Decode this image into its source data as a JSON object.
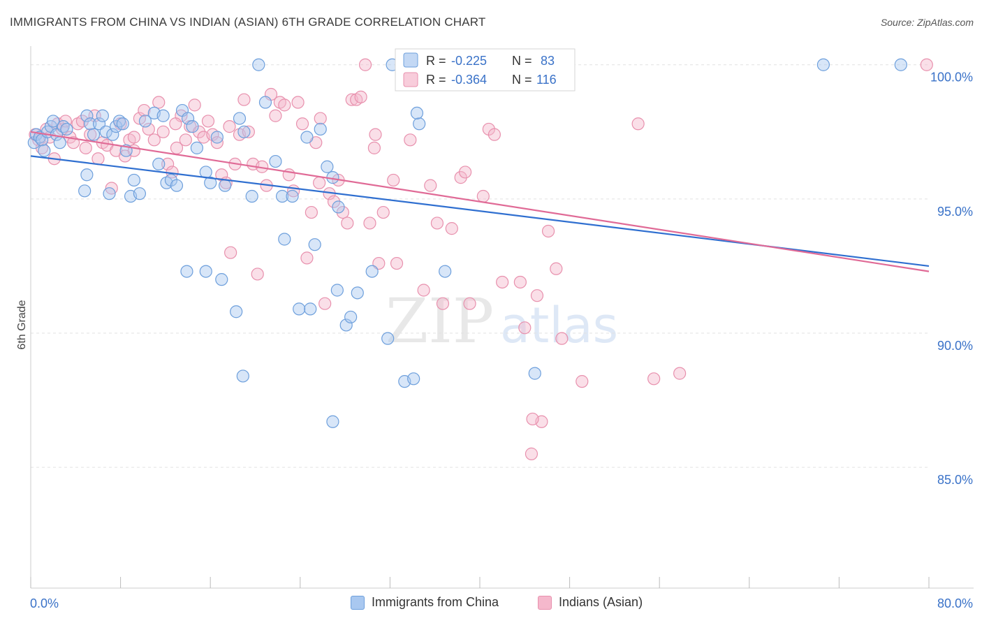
{
  "header": {
    "title": "IMMIGRANTS FROM CHINA VS INDIAN (ASIAN) 6TH GRADE CORRELATION CHART",
    "source": "Source: ZipAtlas.com"
  },
  "watermark": {
    "zip": "ZIP",
    "atlas": "atlas"
  },
  "colors": {
    "china_fill": "#a9c8f0",
    "china_stroke": "#6d9fdc",
    "china_line": "#2f6fd0",
    "indian_fill": "#f5b8cc",
    "indian_stroke": "#e890ad",
    "indian_line": "#e06a96",
    "value_text": "#3a72c8",
    "grid": "#e2e2e2"
  },
  "legend_top": {
    "rows": [
      {
        "r_label": "R =",
        "r_value": "-0.225",
        "n_label": "N =",
        "n_value": "83"
      },
      {
        "r_label": "R =",
        "r_value": "-0.364",
        "n_label": "N =",
        "n_value": "116"
      }
    ]
  },
  "legend_bottom": [
    {
      "label": "Immigrants from China"
    },
    {
      "label": "Indians (Asian)"
    }
  ],
  "chart_data": {
    "type": "scatter",
    "title": "IMMIGRANTS FROM CHINA VS INDIAN (ASIAN) 6TH GRADE CORRELATION CHART",
    "xlabel": "",
    "ylabel": "6th Grade",
    "xlim": [
      0,
      80
    ],
    "ylim": [
      80.5,
      100.8
    ],
    "x_tick_labels": [
      "0.0%",
      "80.0%"
    ],
    "y_ticks": [
      85,
      90,
      95,
      100
    ],
    "y_tick_labels": [
      "85.0%",
      "90.0%",
      "95.0%",
      "100.0%"
    ],
    "grid": true,
    "legend": "top-center",
    "series": [
      {
        "name": "Immigrants from China",
        "r": -0.225,
        "n": 83,
        "trend": [
          [
            0,
            96.6
          ],
          [
            80,
            92.5
          ]
        ],
        "points": [
          [
            0.3,
            97.1
          ],
          [
            0.5,
            97.4
          ],
          [
            0.8,
            97.3
          ],
          [
            1.0,
            97.2
          ],
          [
            1.2,
            96.8
          ],
          [
            1.5,
            97.5
          ],
          [
            1.8,
            97.7
          ],
          [
            2.0,
            97.9
          ],
          [
            2.3,
            97.4
          ],
          [
            2.6,
            97.1
          ],
          [
            2.9,
            97.7
          ],
          [
            3.2,
            97.6
          ],
          [
            4.8,
            95.3
          ],
          [
            5.0,
            98.1
          ],
          [
            5.3,
            97.8
          ],
          [
            5.6,
            97.4
          ],
          [
            5.0,
            95.9
          ],
          [
            6.1,
            97.8
          ],
          [
            6.4,
            98.1
          ],
          [
            6.7,
            97.5
          ],
          [
            7.0,
            95.2
          ],
          [
            7.3,
            97.4
          ],
          [
            7.6,
            97.7
          ],
          [
            7.9,
            97.9
          ],
          [
            8.2,
            97.8
          ],
          [
            8.5,
            96.8
          ],
          [
            8.9,
            95.1
          ],
          [
            9.2,
            95.7
          ],
          [
            9.7,
            95.2
          ],
          [
            10.2,
            97.9
          ],
          [
            11.0,
            98.2
          ],
          [
            11.4,
            96.3
          ],
          [
            11.8,
            98.1
          ],
          [
            12.1,
            95.6
          ],
          [
            12.5,
            95.7
          ],
          [
            13.0,
            95.5
          ],
          [
            13.5,
            98.3
          ],
          [
            14.0,
            98.0
          ],
          [
            14.4,
            97.7
          ],
          [
            14.8,
            96.9
          ],
          [
            15.6,
            96.0
          ],
          [
            16.0,
            95.6
          ],
          [
            16.6,
            97.3
          ],
          [
            17.3,
            95.5
          ],
          [
            18.6,
            98.0
          ],
          [
            19.0,
            97.5
          ],
          [
            19.7,
            95.1
          ],
          [
            20.3,
            100.0
          ],
          [
            20.9,
            98.6
          ],
          [
            21.8,
            96.4
          ],
          [
            22.4,
            95.1
          ],
          [
            23.3,
            95.1
          ],
          [
            24.6,
            97.3
          ],
          [
            25.8,
            97.6
          ],
          [
            26.4,
            96.2
          ],
          [
            26.9,
            95.8
          ],
          [
            27.4,
            94.7
          ],
          [
            13.9,
            92.3
          ],
          [
            15.6,
            92.3
          ],
          [
            17.0,
            92.0
          ],
          [
            18.3,
            90.8
          ],
          [
            18.9,
            88.4
          ],
          [
            22.6,
            93.5
          ],
          [
            23.9,
            90.9
          ],
          [
            24.9,
            90.9
          ],
          [
            25.3,
            93.3
          ],
          [
            27.3,
            91.6
          ],
          [
            28.1,
            90.3
          ],
          [
            28.5,
            90.6
          ],
          [
            29.1,
            91.5
          ],
          [
            30.4,
            92.3
          ],
          [
            31.8,
            89.8
          ],
          [
            32.2,
            100.0
          ],
          [
            33.3,
            88.2
          ],
          [
            34.1,
            88.3
          ],
          [
            34.6,
            97.8
          ],
          [
            36.9,
            92.3
          ],
          [
            39.6,
            100.0
          ],
          [
            44.9,
            88.5
          ],
          [
            70.6,
            100.0
          ],
          [
            77.5,
            100.0
          ],
          [
            26.9,
            86.7
          ],
          [
            34.4,
            98.2
          ]
        ]
      },
      {
        "name": "Indians (Asian)",
        "r": -0.364,
        "n": 116,
        "trend": [
          [
            0,
            97.5
          ],
          [
            80,
            92.3
          ]
        ],
        "points": [
          [
            0.4,
            97.4
          ],
          [
            0.7,
            97.2
          ],
          [
            1.0,
            96.9
          ],
          [
            1.4,
            97.6
          ],
          [
            1.7,
            97.3
          ],
          [
            2.1,
            96.5
          ],
          [
            2.4,
            97.8
          ],
          [
            2.8,
            97.6
          ],
          [
            3.1,
            97.9
          ],
          [
            3.5,
            97.3
          ],
          [
            3.8,
            97.1
          ],
          [
            4.2,
            97.8
          ],
          [
            4.6,
            97.9
          ],
          [
            4.9,
            96.9
          ],
          [
            5.3,
            97.4
          ],
          [
            5.7,
            98.1
          ],
          [
            6.0,
            96.5
          ],
          [
            6.4,
            97.1
          ],
          [
            6.8,
            97.0
          ],
          [
            7.2,
            95.4
          ],
          [
            7.6,
            96.8
          ],
          [
            8.0,
            97.8
          ],
          [
            8.4,
            96.6
          ],
          [
            8.8,
            97.2
          ],
          [
            9.2,
            97.3
          ],
          [
            9.7,
            98.0
          ],
          [
            10.1,
            98.3
          ],
          [
            10.5,
            97.6
          ],
          [
            11.0,
            97.2
          ],
          [
            11.4,
            98.6
          ],
          [
            11.8,
            97.5
          ],
          [
            12.2,
            96.3
          ],
          [
            12.6,
            96.0
          ],
          [
            13.0,
            96.9
          ],
          [
            13.4,
            98.1
          ],
          [
            13.8,
            97.2
          ],
          [
            14.2,
            97.7
          ],
          [
            14.6,
            98.5
          ],
          [
            15.0,
            97.5
          ],
          [
            15.4,
            97.3
          ],
          [
            15.8,
            97.9
          ],
          [
            16.2,
            97.4
          ],
          [
            16.6,
            97.1
          ],
          [
            17.0,
            95.9
          ],
          [
            17.4,
            95.6
          ],
          [
            17.8,
            93.0
          ],
          [
            18.2,
            96.3
          ],
          [
            18.6,
            97.4
          ],
          [
            19.0,
            98.7
          ],
          [
            19.4,
            97.5
          ],
          [
            19.8,
            96.3
          ],
          [
            20.2,
            92.2
          ],
          [
            20.6,
            96.2
          ],
          [
            21.0,
            95.5
          ],
          [
            21.4,
            98.9
          ],
          [
            21.8,
            98.1
          ],
          [
            22.2,
            98.6
          ],
          [
            22.6,
            98.5
          ],
          [
            23.0,
            95.9
          ],
          [
            23.4,
            95.3
          ],
          [
            23.8,
            98.6
          ],
          [
            24.2,
            97.8
          ],
          [
            24.6,
            92.8
          ],
          [
            25.0,
            94.5
          ],
          [
            25.4,
            97.1
          ],
          [
            25.8,
            98.0
          ],
          [
            26.2,
            91.1
          ],
          [
            26.6,
            95.2
          ],
          [
            27.0,
            94.9
          ],
          [
            27.4,
            95.7
          ],
          [
            27.8,
            94.5
          ],
          [
            28.2,
            94.1
          ],
          [
            28.6,
            98.7
          ],
          [
            29.0,
            98.7
          ],
          [
            29.4,
            98.8
          ],
          [
            29.8,
            100.0
          ],
          [
            30.2,
            94.1
          ],
          [
            30.6,
            96.9
          ],
          [
            31.0,
            92.6
          ],
          [
            31.4,
            94.5
          ],
          [
            32.3,
            95.7
          ],
          [
            32.6,
            92.6
          ],
          [
            35.0,
            91.6
          ],
          [
            35.6,
            95.5
          ],
          [
            36.2,
            94.1
          ],
          [
            36.7,
            91.1
          ],
          [
            37.1,
            100.0
          ],
          [
            37.5,
            93.9
          ],
          [
            38.3,
            95.8
          ],
          [
            38.7,
            96.0
          ],
          [
            39.1,
            91.1
          ],
          [
            40.3,
            95.1
          ],
          [
            40.8,
            97.6
          ],
          [
            41.3,
            97.4
          ],
          [
            42.0,
            91.9
          ],
          [
            43.6,
            91.9
          ],
          [
            44.0,
            90.2
          ],
          [
            45.1,
            91.4
          ],
          [
            45.5,
            86.7
          ],
          [
            46.1,
            93.8
          ],
          [
            46.8,
            92.4
          ],
          [
            47.3,
            89.8
          ],
          [
            49.1,
            88.2
          ],
          [
            54.1,
            97.8
          ],
          [
            55.5,
            88.3
          ],
          [
            57.8,
            88.5
          ],
          [
            79.8,
            100.0
          ],
          [
            44.6,
            85.5
          ],
          [
            44.7,
            86.8
          ],
          [
            33.8,
            97.2
          ],
          [
            9.2,
            96.8
          ],
          [
            12.9,
            97.8
          ],
          [
            17.7,
            97.7
          ],
          [
            25.7,
            95.6
          ],
          [
            30.7,
            97.4
          ],
          [
            36.9,
            100.0
          ]
        ]
      }
    ]
  }
}
